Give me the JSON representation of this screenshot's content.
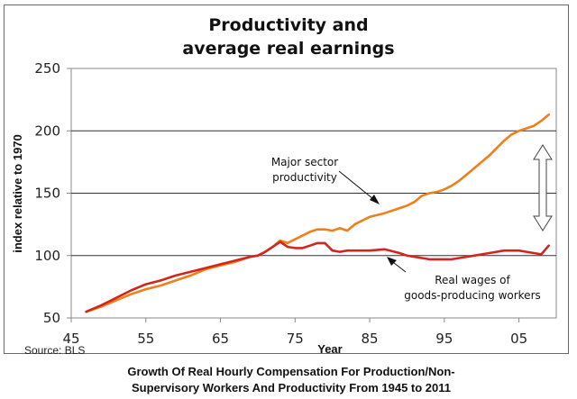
{
  "chart_data": {
    "type": "line",
    "title": [
      "Productivity and",
      "average real earnings"
    ],
    "xlabel": "Year",
    "ylabel": "index relative to 1970",
    "xlim": [
      1945,
      2010
    ],
    "ylim": [
      50,
      250
    ],
    "yticks": [
      50,
      100,
      150,
      200,
      250
    ],
    "ytick_labels": [
      "50",
      "100",
      "150",
      "200",
      "250"
    ],
    "xticks": [
      1945,
      1955,
      1965,
      1975,
      1985,
      1995,
      2005
    ],
    "xtick_labels": [
      "45",
      "55",
      "65",
      "75",
      "85",
      "95",
      "05"
    ],
    "grid": "horizontal",
    "series": [
      {
        "name": "Major sector productivity",
        "color": "#f07f1a",
        "x": [
          1947,
          1949,
          1951,
          1953,
          1955,
          1957,
          1959,
          1961,
          1963,
          1965,
          1967,
          1969,
          1970,
          1971,
          1972,
          1973,
          1974,
          1975,
          1976,
          1977,
          1978,
          1979,
          1980,
          1981,
          1982,
          1983,
          1985,
          1987,
          1989,
          1990,
          1991,
          1992,
          1993,
          1994,
          1995,
          1996,
          1997,
          1998,
          1999,
          2000,
          2001,
          2002,
          2003,
          2004,
          2005,
          2006,
          2007,
          2008,
          2009
        ],
        "values": [
          55,
          59,
          64,
          69,
          73,
          76,
          80,
          84,
          89,
          92,
          95,
          99,
          100,
          103,
          107,
          112,
          110,
          113,
          116,
          119,
          121,
          121,
          120,
          122,
          120,
          125,
          131,
          134,
          138,
          140,
          143,
          148,
          150,
          151,
          153,
          156,
          160,
          165,
          170,
          175,
          180,
          186,
          192,
          197,
          200,
          202,
          204,
          208,
          213
        ]
      },
      {
        "name": "Real wages of goods-producing workers",
        "color": "#d0261e",
        "x": [
          1947,
          1949,
          1951,
          1953,
          1955,
          1957,
          1959,
          1961,
          1963,
          1965,
          1967,
          1969,
          1970,
          1971,
          1972,
          1973,
          1974,
          1975,
          1976,
          1977,
          1978,
          1979,
          1980,
          1981,
          1982,
          1983,
          1985,
          1987,
          1989,
          1990,
          1991,
          1992,
          1993,
          1994,
          1995,
          1996,
          1997,
          1998,
          1999,
          2000,
          2001,
          2002,
          2003,
          2004,
          2005,
          2006,
          2007,
          2008,
          2009
        ],
        "values": [
          55,
          60,
          66,
          72,
          77,
          80,
          84,
          87,
          90,
          93,
          96,
          99,
          100,
          103,
          107,
          111,
          107,
          106,
          106,
          108,
          110,
          110,
          104,
          103,
          104,
          104,
          104,
          105,
          102,
          100,
          99,
          98,
          97,
          97,
          97,
          97,
          98,
          99,
          100,
          101,
          102,
          103,
          104,
          104,
          104,
          103,
          102,
          101,
          108
        ]
      }
    ],
    "annotations": [
      {
        "text": [
          "Major sector",
          "productivity"
        ],
        "points_to": "Major sector productivity",
        "at_year": 1987
      },
      {
        "text": [
          "Real wages of",
          "goods-producing workers"
        ],
        "points_to": "Real wages of goods-producing workers",
        "at_year": 1986
      },
      {
        "text": "double-arrow",
        "meaning": "gap between productivity and real wages",
        "from_value": 188,
        "to_value": 119
      }
    ],
    "source": "Source: BLS"
  },
  "caption": [
    "Growth Of Real Hourly Compensation For Production/Non-",
    "Supervisory Workers And Productivity From 1945 to 2011"
  ]
}
